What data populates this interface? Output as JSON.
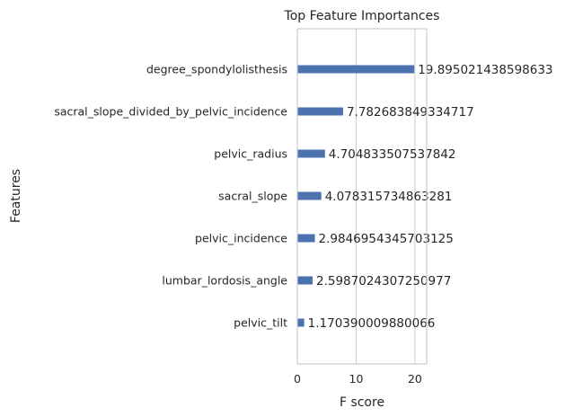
{
  "chart_data": {
    "type": "bar",
    "orientation": "horizontal",
    "title": "Top Feature Importances",
    "xlabel": "F score",
    "ylabel": "Features",
    "xlim": [
      0,
      22
    ],
    "xticks": [
      0,
      10,
      20
    ],
    "grid": "vertical",
    "legend": "none",
    "bar_color": "#4c72b0",
    "categories": [
      "degree_spondylolisthesis",
      "sacral_slope_divided_by_pelvic_incidence",
      "pelvic_radius",
      "sacral_slope",
      "pelvic_incidence",
      "lumbar_lordosis_angle",
      "pelvic_tilt"
    ],
    "values": [
      19.895021438598633,
      7.782683849334717,
      4.704833507537842,
      4.078315734863281,
      2.9846954345703125,
      2.5987024307250977,
      1.170390009880066
    ],
    "value_labels": [
      "19.895021438598633",
      "7.782683849334717",
      "4.704833507537842",
      "4.078315734863281",
      "2.9846954345703125",
      "2.5987024307250977",
      "1.170390009880066"
    ]
  }
}
